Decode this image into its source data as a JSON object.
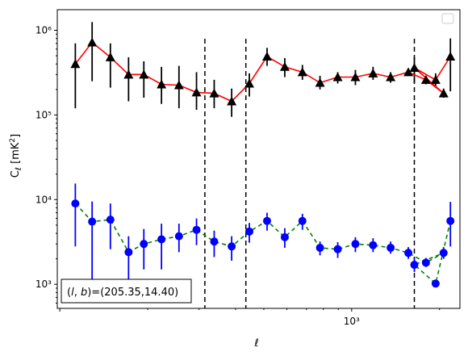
{
  "chart_data": {
    "type": "line",
    "x_scale": "log",
    "y_scale": "log",
    "xlabel": "ℓ",
    "ylabel": "C_ℓ  [mK²]",
    "xlim": [
      98,
      2350
    ],
    "ylim": [
      520,
      1750000
    ],
    "x_tick_labels": [
      {
        "value": 1000,
        "label": "10³"
      }
    ],
    "y_tick_labels": [
      {
        "value": 1000,
        "label": "10³"
      },
      {
        "value": 10000,
        "label": "10⁴"
      },
      {
        "value": 100000,
        "label": "10⁵"
      },
      {
        "value": 1000000,
        "label": "10⁶"
      }
    ],
    "vertical_lines": [
      314,
      434,
      1640
    ],
    "annotation": "(l, b)=(205.35,14.40)",
    "legend": "top-right (empty)",
    "series": [
      {
        "color": "#ff0000",
        "marker": "triangle",
        "marker_color": "#000000",
        "errorbar_color": "#000000",
        "linestyle": "solid",
        "x": [
          113,
          129,
          149,
          172,
          194,
          223,
          256,
          294,
          338,
          388,
          446,
          513,
          590,
          678,
          779,
          896,
          1030,
          1184,
          1360,
          1564,
          1797,
          2066
        ],
        "y": [
          400000,
          720000,
          480000,
          300000,
          300000,
          230000,
          225000,
          185000,
          180000,
          145000,
          235000,
          490000,
          370000,
          320000,
          240000,
          280000,
          280000,
          310000,
          280000,
          320000,
          260000,
          180000
        ],
        "yerr_low": [
          120000,
          250000,
          210000,
          145000,
          160000,
          135000,
          120000,
          115000,
          120000,
          95000,
          165000,
          380000,
          280000,
          260000,
          200000,
          235000,
          225000,
          260000,
          240000,
          290000,
          230000,
          160000
        ],
        "yerr_high": [
          700000,
          1250000,
          700000,
          480000,
          430000,
          370000,
          380000,
          320000,
          260000,
          205000,
          310000,
          620000,
          470000,
          390000,
          290000,
          320000,
          340000,
          370000,
          320000,
          350000,
          290000,
          205000
        ]
      },
      {
        "color": "#008000",
        "marker": "circle",
        "marker_color": "#0000ff",
        "errorbar_color": "#0000ff",
        "linestyle": "dashed",
        "x": [
          113,
          129,
          149,
          172,
          194,
          223,
          256,
          294,
          338,
          388,
          446,
          513,
          590,
          678,
          779,
          896,
          1030,
          1184,
          1360,
          1564,
          1797,
          2066
        ],
        "y": [
          9000,
          5500,
          5800,
          2400,
          3000,
          3400,
          3700,
          4400,
          3200,
          2800,
          4200,
          5600,
          3600,
          5600,
          2700,
          2600,
          3000,
          2900,
          2700,
          2350,
          1800,
          2350
        ],
        "yerr_low": [
          2800,
          1000,
          2600,
          950,
          1500,
          1500,
          2400,
          2900,
          2100,
          1900,
          3100,
          4300,
          2700,
          4400,
          2200,
          2050,
          2400,
          2400,
          2300,
          2000,
          1600,
          2000
        ],
        "yerr_high": [
          15500,
          9500,
          9000,
          3700,
          4500,
          5200,
          5200,
          6000,
          4300,
          3700,
          5300,
          7000,
          4600,
          6800,
          3200,
          3150,
          3600,
          3500,
          3200,
          2750,
          2050,
          2750
        ]
      }
    ],
    "series_tail": {
      "x": [
        1640,
        1940,
        2180
      ],
      "black_y": [
        360000,
        260000,
        490000
      ],
      "black_err_low": [
        240000,
        210000,
        190000
      ],
      "black_err_high": [
        480000,
        310000,
        800000
      ],
      "blue_y": [
        1700,
        1020,
        5600
      ],
      "blue_err_low": [
        1400,
        1020,
        2800
      ],
      "blue_err_high": [
        2050,
        1020,
        9400
      ]
    }
  }
}
